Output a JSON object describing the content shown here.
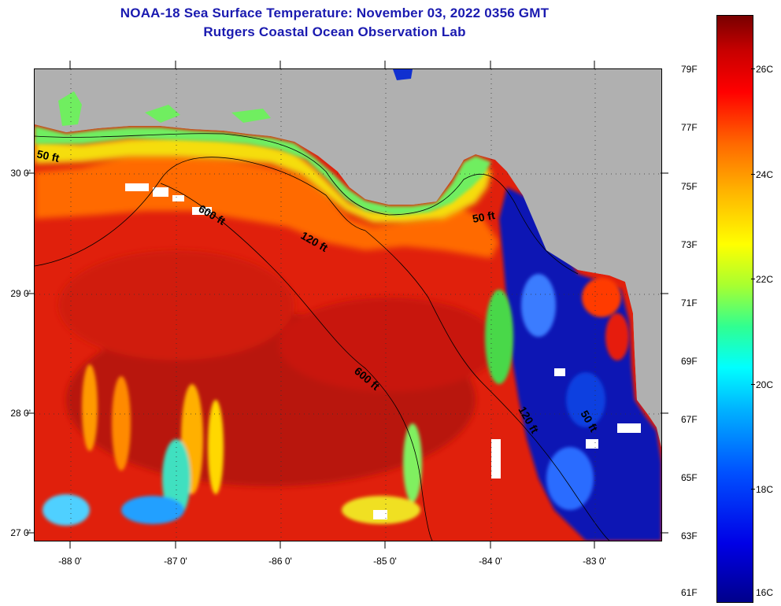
{
  "header": {
    "title": "NOAA-18 Sea Surface Temperature:  November 03, 2022 0356 GMT",
    "subtitle": "Rutgers Coastal Ocean Observation Lab"
  },
  "map": {
    "lat_labels": [
      "30 0'",
      "29 0'",
      "28 0'",
      "27 0'"
    ],
    "lon_labels": [
      "-88 0'",
      "-87 0'",
      "-86 0'",
      "-85 0'",
      "-84 0'",
      "-83 0'"
    ],
    "contour_labels": [
      "50 ft",
      "600 ft",
      "120 ft",
      "50 ft",
      "600 ft",
      "120 ft",
      "50 ft"
    ]
  },
  "colorbar": {
    "f_labels": [
      "79F",
      "77F",
      "75F",
      "73F",
      "71F",
      "69F",
      "67F",
      "65F",
      "63F",
      "61F"
    ],
    "c_labels": [
      "26C",
      "24C",
      "22C",
      "20C",
      "18C",
      "16C"
    ]
  },
  "colors": {
    "title": "#1a1ab0",
    "land": "#b0b0b0",
    "warm": "#e61e0a",
    "cold": "#0a14b4"
  }
}
